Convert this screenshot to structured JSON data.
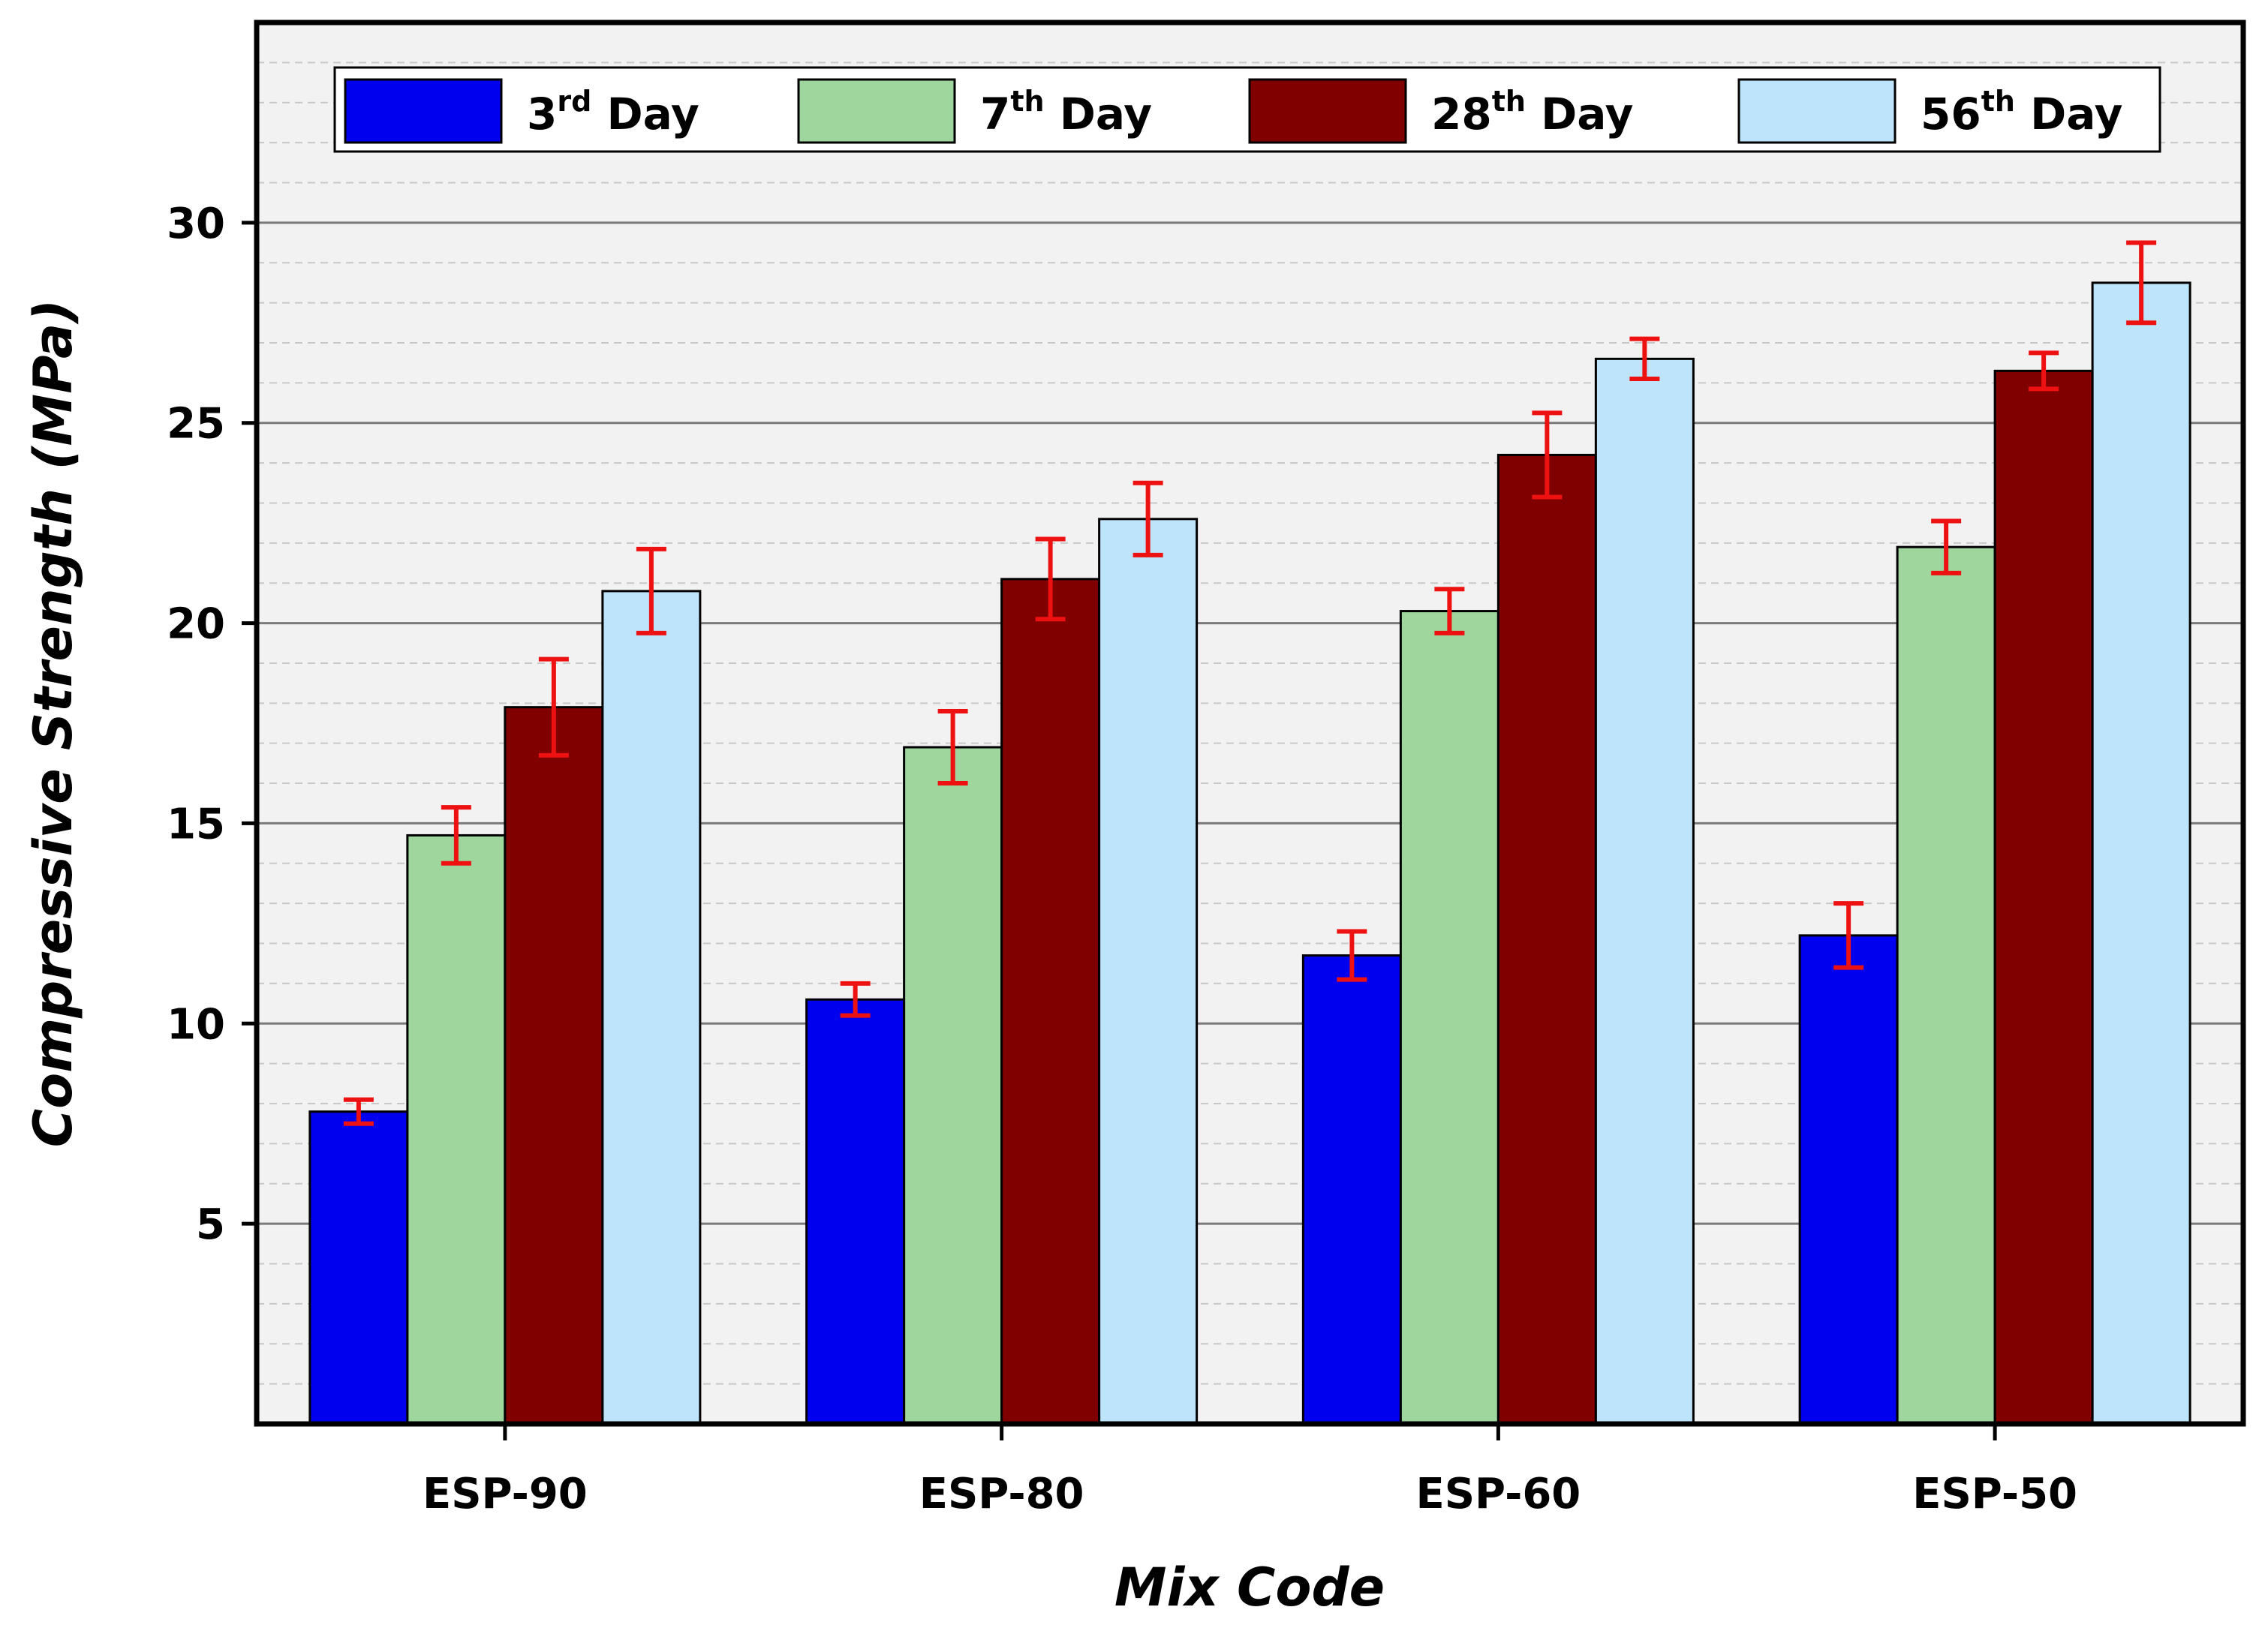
{
  "chart_data": {
    "type": "bar",
    "title": "",
    "xlabel": "Mix Code",
    "ylabel": "Compressive Strength (MPa)",
    "categories": [
      "ESP-90",
      "ESP-80",
      "ESP-60",
      "ESP-50"
    ],
    "ylim": [
      0,
      35
    ],
    "yticks": [
      5,
      10,
      15,
      20,
      25,
      30
    ],
    "grid": true,
    "legend_position": "top",
    "series": [
      {
        "name": "3rd Day",
        "label_main": "3",
        "label_sup": "rd",
        "label_tail": " Day",
        "color": "#0000EE",
        "values": [
          7.8,
          10.6,
          11.7,
          12.2
        ],
        "errors": [
          0.3,
          0.4,
          0.6,
          0.8
        ]
      },
      {
        "name": "7th Day",
        "label_main": "7",
        "label_sup": "th",
        "label_tail": " Day",
        "color": "#9ED69E",
        "values": [
          14.7,
          16.9,
          20.3,
          21.9
        ],
        "errors": [
          0.7,
          0.9,
          0.55,
          0.65
        ]
      },
      {
        "name": "28th Day",
        "label_main": "28",
        "label_sup": "th",
        "label_tail": " Day",
        "color": "#800000",
        "values": [
          17.9,
          21.1,
          24.2,
          26.3
        ],
        "errors": [
          1.2,
          1.0,
          1.05,
          0.45
        ]
      },
      {
        "name": "56th Day",
        "label_main": "56",
        "label_sup": "th",
        "label_tail": " Day",
        "color": "#BDE4FA",
        "values": [
          20.8,
          22.6,
          26.6,
          28.5
        ],
        "errors": [
          1.05,
          0.9,
          0.5,
          1.0
        ]
      }
    ],
    "error_bar_color": "#EE1111"
  }
}
